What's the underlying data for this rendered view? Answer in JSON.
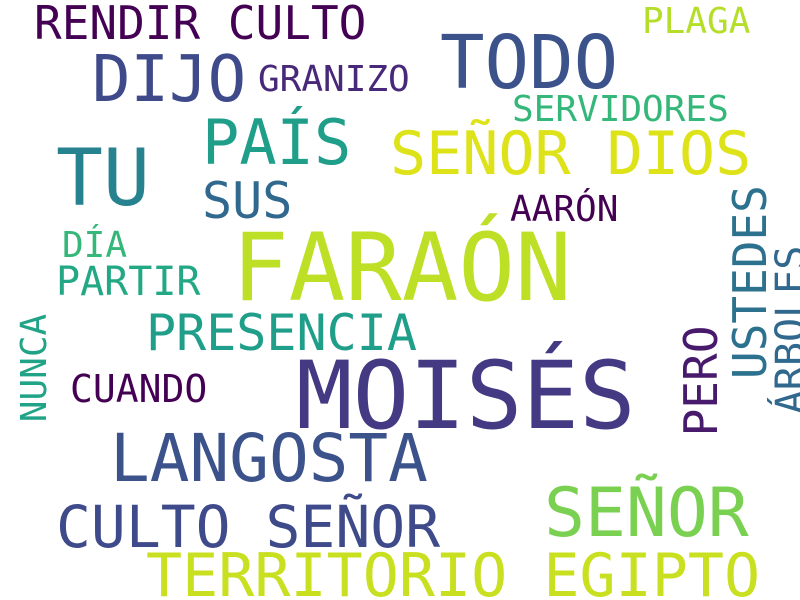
{
  "words": [
    {
      "id": "rendir-culto",
      "text": "RENDIR CULTO",
      "color": "#440154"
    },
    {
      "id": "todo",
      "text": "TODO",
      "color": "#3b528b"
    },
    {
      "id": "plaga",
      "text": "PLAGA",
      "color": "#b5de2b"
    },
    {
      "id": "dijo",
      "text": "DIJO",
      "color": "#3e4a89"
    },
    {
      "id": "granizo",
      "text": "GRANIZO",
      "color": "#482878"
    },
    {
      "id": "servidores",
      "text": "SERVIDORES",
      "color": "#35b779"
    },
    {
      "id": "tu",
      "text": "TU",
      "color": "#26828e"
    },
    {
      "id": "pais",
      "text": "PAÍS",
      "color": "#1f9e89"
    },
    {
      "id": "senor-dios",
      "text": "SEÑOR DIOS",
      "color": "#dde318"
    },
    {
      "id": "sus",
      "text": "SUS",
      "color": "#31688e"
    },
    {
      "id": "aaron",
      "text": "AARÓN",
      "color": "#440154"
    },
    {
      "id": "dia",
      "text": "DÍA",
      "color": "#35b779"
    },
    {
      "id": "faraon",
      "text": "FARAÓN",
      "color": "#bddf26"
    },
    {
      "id": "partir",
      "text": "PARTIR",
      "color": "#22a884"
    },
    {
      "id": "ustedes",
      "text": "USTEDES",
      "color": "#2c728e"
    },
    {
      "id": "arboles",
      "text": "ÁRBOLES",
      "color": "#31688e"
    },
    {
      "id": "presencia",
      "text": "PRESENCIA",
      "color": "#1f9e89"
    },
    {
      "id": "nunca",
      "text": "NUNCA",
      "color": "#20a386"
    },
    {
      "id": "moises",
      "text": "MOISÉS",
      "color": "#443983"
    },
    {
      "id": "cuando",
      "text": "CUANDO",
      "color": "#440154"
    },
    {
      "id": "pero",
      "text": "PERO",
      "color": "#481a6c"
    },
    {
      "id": "langosta",
      "text": "LANGOSTA",
      "color": "#3b528b"
    },
    {
      "id": "senor",
      "text": "SEÑOR",
      "color": "#7ad151"
    },
    {
      "id": "culto-senor",
      "text": "CULTO SEÑOR",
      "color": "#3e4a89"
    },
    {
      "id": "territorio-egipto",
      "text": "TERRITORIO EGIPTO",
      "color": "#c8e020"
    }
  ]
}
